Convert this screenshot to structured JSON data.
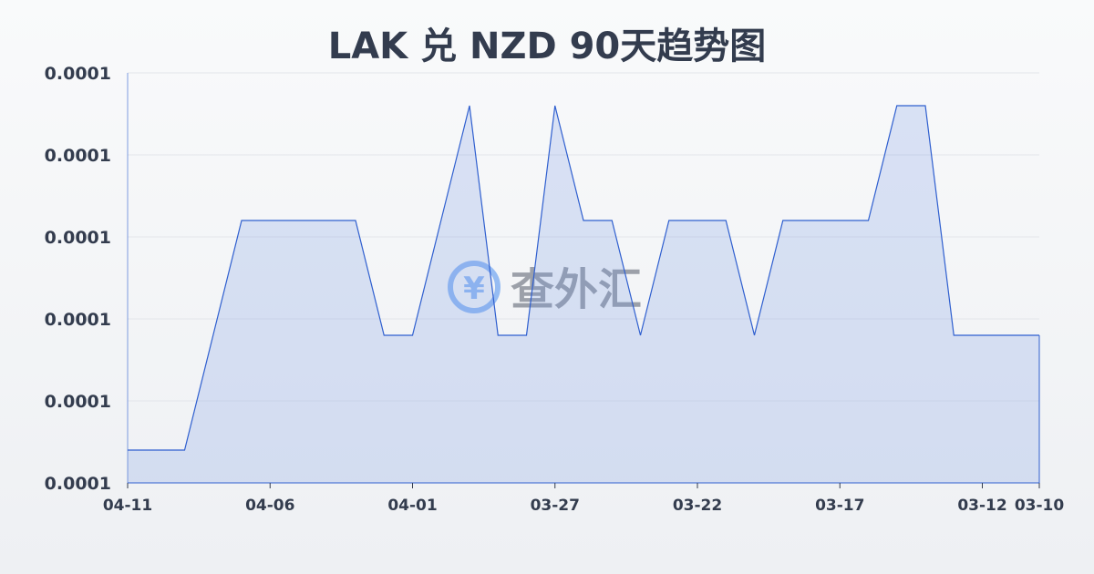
{
  "title": "LAK 兑 NZD 90天趋势图",
  "watermark": "查外汇",
  "colors": {
    "line": "#2f5fcf",
    "fill": "#6f93e3",
    "grid": "#e3e5ea",
    "text": "#333c4e",
    "watermark": "#4a8ef0"
  },
  "chart_data": {
    "type": "area",
    "title": "LAK 兑 NZD 90天趋势图",
    "xlabel": "",
    "ylabel": "",
    "x_reversed_dates": true,
    "categories": [
      "04-11",
      "04-10",
      "04-09",
      "04-08",
      "04-07",
      "04-06",
      "04-05",
      "04-04",
      "04-03",
      "04-02",
      "04-01",
      "03-31",
      "03-30",
      "03-29",
      "03-28",
      "03-27",
      "03-26",
      "03-25",
      "03-24",
      "03-23",
      "03-22",
      "03-21",
      "03-20",
      "03-19",
      "03-18",
      "03-17",
      "03-16",
      "03-15",
      "03-14",
      "03-13",
      "03-12",
      "03-11",
      "03-10"
    ],
    "values": [
      7.42e-05,
      7.42e-05,
      7.42e-05,
      7.49e-05,
      7.56e-05,
      7.56e-05,
      7.56e-05,
      7.56e-05,
      7.56e-05,
      7.49e-05,
      7.49e-05,
      7.56e-05,
      7.63e-05,
      7.49e-05,
      7.49e-05,
      7.63e-05,
      7.56e-05,
      7.56e-05,
      7.49e-05,
      7.56e-05,
      7.56e-05,
      7.56e-05,
      7.49e-05,
      7.56e-05,
      7.56e-05,
      7.56e-05,
      7.56e-05,
      7.63e-05,
      7.63e-05,
      7.49e-05,
      7.49e-05,
      7.49e-05,
      7.49e-05
    ],
    "ylim": [
      7.4e-05,
      7.65e-05
    ],
    "yticks": [
      7.4e-05,
      7.45e-05,
      7.5e-05,
      7.55e-05,
      7.6e-05,
      7.65e-05
    ],
    "ytick_labels": [
      "0.0001",
      "0.0001",
      "0.0001",
      "0.0001",
      "0.0001",
      "0.0001"
    ],
    "xtick_labels": [
      "04-11",
      "04-06",
      "04-01",
      "03-27",
      "03-22",
      "03-17",
      "03-12",
      "03-10"
    ],
    "grid": true,
    "legend": "none"
  }
}
